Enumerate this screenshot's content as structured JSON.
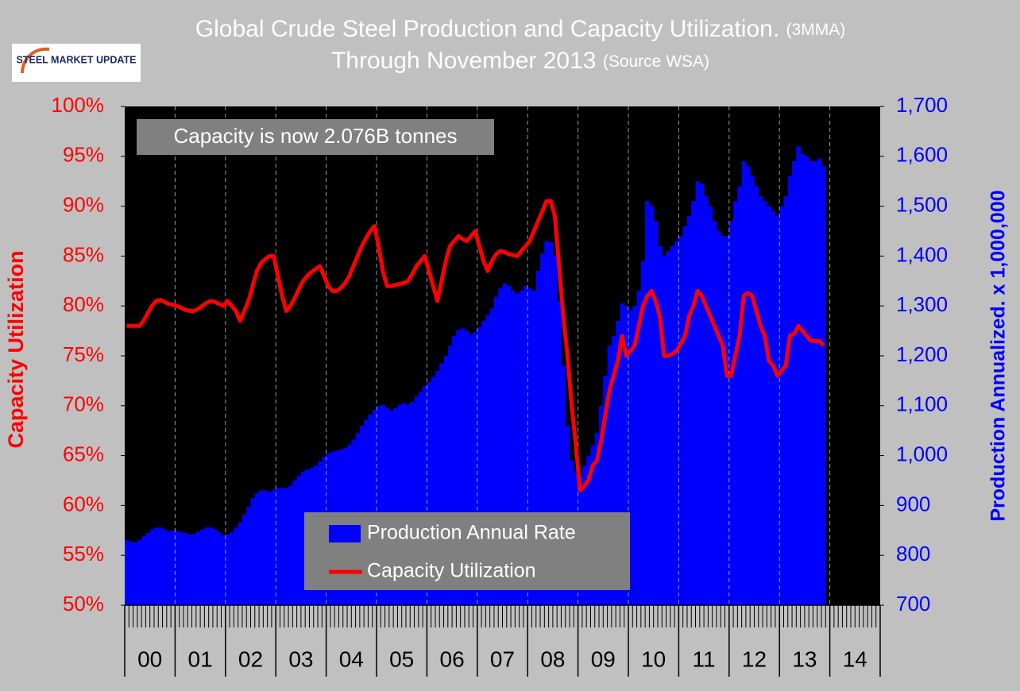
{
  "chart_data": {
    "type": "bar",
    "title": "Global Crude Steel Production and Capacity Utilization.",
    "title_note": "(3MMA)",
    "subtitle": "Through November 2013",
    "subtitle_note": "(Source WSA)",
    "logo": "STEEL MARKET UPDATE",
    "annotation": "Capacity is now 2.076B tonnes",
    "ylabel": "Capacity Utilization",
    "y2label": "Production Annualized. x 1,000,000",
    "year_labels": [
      "00",
      "01",
      "02",
      "03",
      "04",
      "05",
      "06",
      "07",
      "08",
      "09",
      "10",
      "11",
      "12",
      "13",
      "14"
    ],
    "ylim": [
      50,
      100
    ],
    "yticks": [
      {
        "value": 50,
        "label": "50%"
      },
      {
        "value": 55,
        "label": "55%"
      },
      {
        "value": 60,
        "label": "60%"
      },
      {
        "value": 65,
        "label": "65%"
      },
      {
        "value": 70,
        "label": "70%"
      },
      {
        "value": 75,
        "label": "75%"
      },
      {
        "value": 80,
        "label": "80%"
      },
      {
        "value": 85,
        "label": "85%"
      },
      {
        "value": 90,
        "label": "90%"
      },
      {
        "value": 95,
        "label": "95%"
      },
      {
        "value": 100,
        "label": "100%"
      }
    ],
    "y2lim": [
      700,
      1700
    ],
    "y2ticks": [
      700,
      800,
      900,
      {
        "value": 1000,
        "label": "1,000"
      },
      {
        "value": 1100,
        "label": "1,100"
      },
      {
        "value": 1200,
        "label": "1,200"
      },
      {
        "value": 1300,
        "label": "1,300"
      },
      {
        "value": 1400,
        "label": "1,400"
      },
      {
        "value": 1500,
        "label": "1,500"
      },
      {
        "value": 1600,
        "label": "1,600"
      },
      {
        "value": 1700,
        "label": "1,700"
      }
    ],
    "series": [
      {
        "name": "Production Annual Rate",
        "type": "bar",
        "axis": "y2",
        "color": "#0000ff",
        "values": [
          830,
          828,
          826,
          830,
          838,
          845,
          852,
          855,
          856,
          852,
          848,
          850,
          848,
          846,
          845,
          842,
          843,
          848,
          852,
          856,
          856,
          852,
          846,
          840,
          842,
          846,
          856,
          866,
          882,
          898,
          915,
          925,
          930,
          930,
          928,
          932,
          935,
          935,
          935,
          940,
          950,
          960,
          968,
          972,
          975,
          980,
          988,
          998,
          1005,
          1008,
          1010,
          1012,
          1015,
          1022,
          1032,
          1045,
          1060,
          1072,
          1082,
          1092,
          1100,
          1102,
          1095,
          1090,
          1095,
          1102,
          1105,
          1102,
          1108,
          1118,
          1128,
          1140,
          1148,
          1158,
          1170,
          1185,
          1200,
          1220,
          1240,
          1252,
          1255,
          1250,
          1242,
          1248,
          1258,
          1270,
          1282,
          1295,
          1318,
          1335,
          1345,
          1340,
          1330,
          1325,
          1330,
          1340,
          1335,
          1330,
          1370,
          1405,
          1430,
          1428,
          1400,
          1310,
          1180,
          1060,
          990,
          965,
          960,
          980,
          1000,
          1020,
          1045,
          1100,
          1160,
          1220,
          1240,
          1270,
          1305,
          1300,
          1290,
          1300,
          1330,
          1390,
          1510,
          1500,
          1470,
          1420,
          1400,
          1410,
          1420,
          1430,
          1440,
          1460,
          1480,
          1510,
          1550,
          1545,
          1520,
          1500,
          1470,
          1450,
          1440,
          1440,
          1470,
          1510,
          1540,
          1590,
          1580,
          1560,
          1540,
          1520,
          1510,
          1500,
          1490,
          1480,
          1500,
          1520,
          1560,
          1590,
          1620,
          1605,
          1600,
          1590,
          1590,
          1595,
          1580
        ]
      },
      {
        "name": "Capacity Utilization",
        "type": "line",
        "color": "#ff0000",
        "values": [
          78,
          78,
          78,
          78,
          78.5,
          79.3,
          80,
          80.5,
          80.6,
          80.4,
          80.2,
          80.1,
          80,
          79.8,
          79.6,
          79.5,
          79.5,
          79.7,
          80,
          80.3,
          80.5,
          80.4,
          80.2,
          80,
          80.5,
          80,
          79.5,
          78.5,
          79.5,
          80.5,
          82,
          83.5,
          84.3,
          84.7,
          85,
          85,
          83,
          81,
          79.5,
          80,
          80.8,
          81.7,
          82.5,
          83,
          83.4,
          83.7,
          84,
          83,
          82,
          81.5,
          81.5,
          81.8,
          82.3,
          83,
          84,
          85,
          86,
          86.8,
          87.5,
          88,
          86,
          83.5,
          82,
          82,
          82.1,
          82.2,
          82.3,
          82.5,
          83.2,
          84,
          84.5,
          85,
          83.5,
          82,
          80.5,
          82.5,
          84.5,
          86,
          86.5,
          87,
          86.7,
          86.5,
          87,
          87.5,
          86,
          84.5,
          83.5,
          84.5,
          85.2,
          85.5,
          85.4,
          85.2,
          85.1,
          85,
          85.5,
          86,
          86.5,
          87.5,
          88.5,
          89.5,
          90.5,
          90.5,
          89,
          84,
          79,
          75,
          70,
          66,
          61.5,
          62,
          62.5,
          64,
          64.5,
          66.5,
          69,
          71.5,
          73,
          74.5,
          77,
          75,
          75.5,
          76,
          78,
          80,
          81,
          81.5,
          80.5,
          79,
          75,
          75,
          75.2,
          75.5,
          76.2,
          77,
          79,
          80,
          81.5,
          81,
          80,
          79,
          78,
          77,
          76,
          73,
          73,
          75,
          77,
          81,
          81.3,
          81,
          79.5,
          78,
          77,
          74.5,
          74,
          73,
          73.5,
          74,
          77,
          77.2,
          78,
          77.5,
          77,
          76.5,
          76.5,
          76.5,
          76
        ]
      }
    ]
  }
}
